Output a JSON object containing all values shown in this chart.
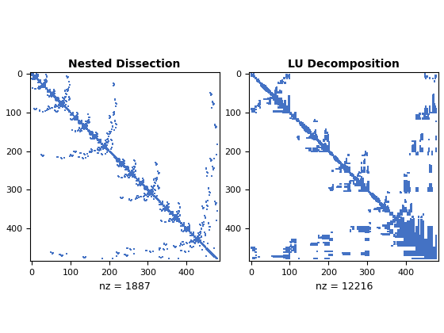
{
  "title1": "Nested Dissection",
  "title2": "LU Decomposition",
  "xlabel1": "nz = 1887",
  "xlabel2": "nz = 12216",
  "n": 480,
  "nz1": 1887,
  "nz2": 12216,
  "marker_color": "#4472C4",
  "marker_size": 1.8,
  "seed": 12345,
  "figsize": [
    5.6,
    4.2
  ],
  "dpi": 100
}
